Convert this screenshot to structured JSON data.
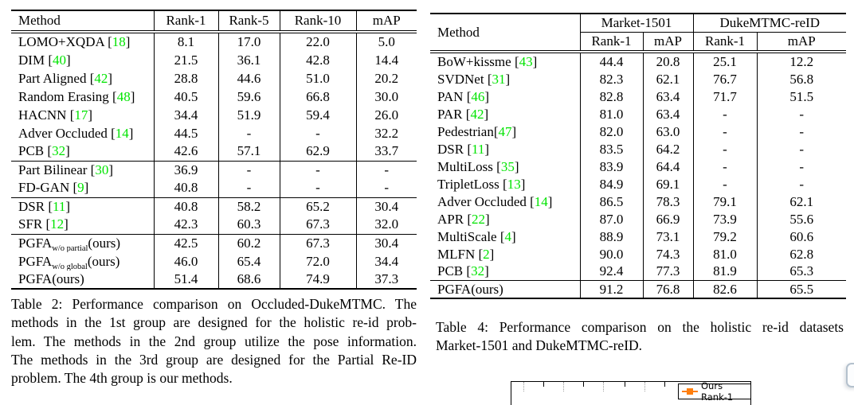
{
  "colors": {
    "text": "#000000",
    "citation_green": "#00e400",
    "legend_orange": "#ff7f0e",
    "page_background": "#ffffff",
    "float_panel_border": "#b4c1cd"
  },
  "table2": {
    "headers": [
      "Method",
      "Rank-1",
      "Rank-5",
      "Rank-10",
      "mAP"
    ],
    "groups": [
      {
        "rows": [
          {
            "name": "LOMO+XQDA",
            "cite": "18",
            "values": [
              "8.1",
              "17.0",
              "22.0",
              "5.0"
            ]
          },
          {
            "name": "DIM",
            "cite": "40",
            "values": [
              "21.5",
              "36.1",
              "42.8",
              "14.4"
            ]
          },
          {
            "name": "Part Aligned",
            "cite": "42",
            "values": [
              "28.8",
              "44.6",
              "51.0",
              "20.2"
            ]
          },
          {
            "name": "Random Erasing",
            "cite": "48",
            "values": [
              "40.5",
              "59.6",
              "66.8",
              "30.0"
            ]
          },
          {
            "name": "HACNN",
            "cite": "17",
            "values": [
              "34.4",
              "51.9",
              "59.4",
              "26.0"
            ]
          },
          {
            "name": "Adver Occluded",
            "cite": "14",
            "values": [
              "44.5",
              "-",
              "-",
              "32.2"
            ]
          },
          {
            "name": "PCB",
            "cite": "32",
            "values": [
              "42.6",
              "57.1",
              "62.9",
              "33.7"
            ]
          }
        ]
      },
      {
        "rows": [
          {
            "name": "Part Bilinear",
            "cite": "30",
            "values": [
              "36.9",
              "-",
              "-",
              "-"
            ]
          },
          {
            "name": "FD-GAN",
            "cite": "9",
            "values": [
              "40.8",
              "-",
              "-",
              "-"
            ]
          }
        ]
      },
      {
        "rows": [
          {
            "name": "DSR",
            "cite": "11",
            "values": [
              "40.8",
              "58.2",
              "65.2",
              "30.4"
            ]
          },
          {
            "name": "SFR",
            "cite": "12",
            "values": [
              "42.3",
              "60.3",
              "67.3",
              "32.0"
            ]
          }
        ]
      },
      {
        "rows": [
          {
            "name": "PGFA",
            "sub": "w/o partial",
            "suffix": "(ours)",
            "values": [
              "42.5",
              "60.2",
              "67.3",
              "30.4"
            ]
          },
          {
            "name": "PGFA",
            "sub": "w/o global",
            "suffix": "(ours)",
            "values": [
              "46.0",
              "65.4",
              "72.0",
              "34.4"
            ]
          },
          {
            "name": "PGFA",
            "suffix": "(ours)",
            "bold": true,
            "values": [
              "51.4",
              "68.6",
              "74.9",
              "37.3"
            ]
          }
        ]
      }
    ],
    "caption_lines": [
      "Table 2: Performance comparison on Occluded-DukeMTMC. The",
      "methods in the 1st group are designed for the holistic re-id prob-",
      "lem.  The methods in the 2nd group utilize the pose information.",
      "The methods in the 3rd group are designed for the Partial Re-ID",
      "problem. The 4th group is our methods."
    ]
  },
  "table4": {
    "method_header": "Method",
    "group_headers": [
      "Market-1501",
      "DukeMTMC-reID"
    ],
    "sub_headers": [
      "Rank-1",
      "mAP",
      "Rank-1",
      "mAP"
    ],
    "groups": [
      {
        "rows": [
          {
            "name": "BoW+kissme",
            "cite": "43",
            "values": [
              "44.4",
              "20.8",
              "25.1",
              "12.2"
            ]
          },
          {
            "name": "SVDNet",
            "cite": "31",
            "values": [
              "82.3",
              "62.1",
              "76.7",
              "56.8"
            ]
          },
          {
            "name": "PAN",
            "cite": "46",
            "values": [
              "82.8",
              "63.4",
              "71.7",
              "51.5"
            ]
          },
          {
            "name": "PAR",
            "cite": "42",
            "values": [
              "81.0",
              "63.4",
              "-",
              "-"
            ]
          },
          {
            "name": "Pedestrian",
            "cite": "47",
            "nospace": true,
            "values": [
              "82.0",
              "63.0",
              "-",
              "-"
            ]
          },
          {
            "name": "DSR",
            "cite": "11",
            "values": [
              "83.5",
              "64.2",
              "-",
              "-"
            ]
          },
          {
            "name": "MultiLoss",
            "cite": "35",
            "values": [
              "83.9",
              "64.4",
              "-",
              "-"
            ]
          },
          {
            "name": "TripletLoss",
            "cite": "13",
            "values": [
              "84.9",
              "69.1",
              "-",
              "-"
            ]
          },
          {
            "name": "Adver Occluded",
            "cite": "14",
            "values": [
              "86.5",
              "78.3",
              "79.1",
              "62.1"
            ]
          },
          {
            "name": "APR",
            "cite": "22",
            "values": [
              "87.0",
              "66.9",
              "73.9",
              "55.6"
            ]
          },
          {
            "name": "MultiScale",
            "cite": "4",
            "values": [
              "88.9",
              "73.1",
              "79.2",
              "60.6"
            ]
          },
          {
            "name": "MLFN",
            "cite": "2",
            "values": [
              "90.0",
              "74.3",
              "81.0",
              "62.8"
            ]
          },
          {
            "name": "PCB",
            "cite": "32",
            "values": [
              "92.4",
              "77.3",
              "81.9",
              "65.3"
            ]
          }
        ]
      },
      {
        "rows": [
          {
            "name": "PGFA",
            "suffix": "(ours)",
            "values": [
              "91.2",
              "76.8",
              "82.6",
              "65.5"
            ]
          }
        ]
      }
    ],
    "caption_lines": [
      "Table 4:  Performance comparison on the holistic re-id datasets",
      "Market-1501 and DukeMTMC-reID."
    ]
  },
  "figure": {
    "legend_label": "Ours Rank-1"
  }
}
